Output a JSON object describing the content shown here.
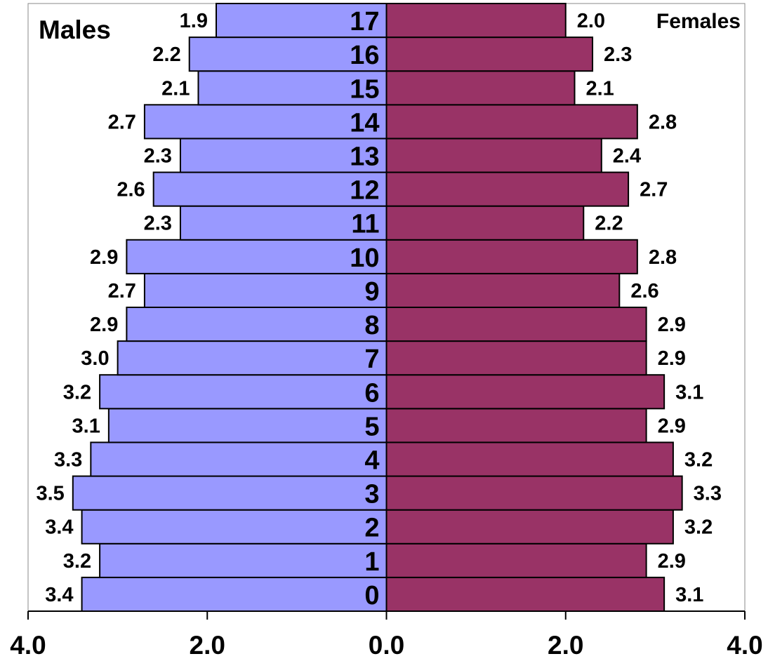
{
  "chart_data": {
    "type": "bar",
    "orientation": "horizontal",
    "layout": "population-pyramid",
    "categories": [
      "0",
      "1",
      "2",
      "3",
      "4",
      "5",
      "6",
      "7",
      "8",
      "9",
      "10",
      "11",
      "12",
      "13",
      "14",
      "15",
      "16",
      "17"
    ],
    "series": [
      {
        "name": "Males",
        "side": "left",
        "color": "#9999ff",
        "values": [
          3.4,
          3.2,
          3.4,
          3.5,
          3.3,
          3.1,
          3.2,
          3.0,
          2.9,
          2.7,
          2.9,
          2.3,
          2.6,
          2.3,
          2.7,
          2.1,
          2.2,
          1.9
        ]
      },
      {
        "name": "Females",
        "side": "right",
        "color": "#993366",
        "values": [
          3.1,
          2.9,
          3.2,
          3.3,
          3.2,
          2.9,
          3.1,
          2.9,
          2.9,
          2.6,
          2.8,
          2.2,
          2.7,
          2.4,
          2.8,
          2.1,
          2.3,
          2.0
        ]
      }
    ],
    "xlim": [
      -4.0,
      4.0
    ],
    "xticks": [
      -4,
      -2,
      0,
      2,
      4
    ],
    "xtick_labels": [
      "4.0",
      "2.0",
      "0.0",
      "2.0",
      "4.0"
    ],
    "grid": false,
    "legend": "series names printed in top-left and top-right corners",
    "title": "",
    "xlabel": "",
    "ylabel": ""
  }
}
